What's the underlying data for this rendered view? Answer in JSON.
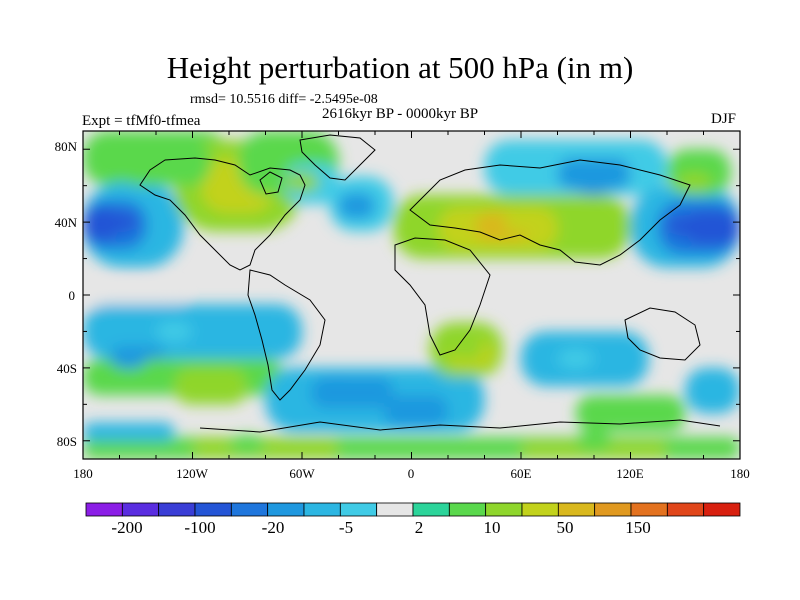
{
  "title": "Height perturbation at 500 hPa (in m)",
  "stats": "rmsd= 10.5516 diff= -2.5495e-08",
  "period": "2616kyr BP - 0000kyr BP",
  "experiment": "Expt = tfMf0-tfmea",
  "season": "DJF",
  "axes": {
    "lat_labels": [
      "80N",
      "40N",
      "0",
      "40S",
      "80S"
    ],
    "lat_values": [
      80,
      40,
      0,
      -40,
      -80
    ],
    "lon_labels": [
      "180",
      "120W",
      "60W",
      "0",
      "60E",
      "120E",
      "180"
    ],
    "lon_values": [
      -180,
      -120,
      -60,
      0,
      60,
      120,
      180
    ]
  },
  "colorbar": {
    "colors": [
      "#8b1ee6",
      "#5a2de0",
      "#3a3ed6",
      "#2455d6",
      "#1f76dc",
      "#1f98df",
      "#2cb6e2",
      "#40cbe6",
      "#e6e6e6",
      "#2cd49a",
      "#5ad84c",
      "#8fd62c",
      "#c2d21c",
      "#d9b81e",
      "#e09920",
      "#e3721f",
      "#e0461a",
      "#d8200f"
    ],
    "labels": [
      "-200",
      "-100",
      "-20",
      "-5",
      "2",
      "10",
      "50",
      "150"
    ]
  },
  "chart_data": {
    "type": "filled-contour-map",
    "variable": "geopotential height perturbation",
    "units": "m",
    "level_hPa": 500,
    "season": "DJF",
    "lon_range": [
      -180,
      180
    ],
    "lat_range": [
      -90,
      90
    ],
    "anomalies": [
      {
        "lon": -160,
        "lat": 40,
        "value": -100
      },
      {
        "lon": 150,
        "lat": 38,
        "value": -100
      },
      {
        "lon": -100,
        "lat": 55,
        "value": 20
      },
      {
        "lon": -60,
        "lat": 62,
        "value": 10
      },
      {
        "lon": -30,
        "lat": 48,
        "value": -20
      },
      {
        "lon": 60,
        "lat": 40,
        "value": 20
      },
      {
        "lon": 100,
        "lat": 60,
        "value": -20
      },
      {
        "lon": 155,
        "lat": 62,
        "value": 10
      },
      {
        "lon": -130,
        "lat": -20,
        "value": -5
      },
      {
        "lon": -155,
        "lat": -35,
        "value": -20
      },
      {
        "lon": -120,
        "lat": -50,
        "value": 10
      },
      {
        "lon": -40,
        "lat": -50,
        "value": -20
      },
      {
        "lon": 0,
        "lat": -62,
        "value": -20
      },
      {
        "lon": 30,
        "lat": -30,
        "value": 10
      },
      {
        "lon": 90,
        "lat": -35,
        "value": -5
      },
      {
        "lon": 130,
        "lat": -62,
        "value": 5
      },
      {
        "lon": -90,
        "lat": -82,
        "value": 5
      },
      {
        "lon": 100,
        "lat": -80,
        "value": 5
      }
    ]
  }
}
